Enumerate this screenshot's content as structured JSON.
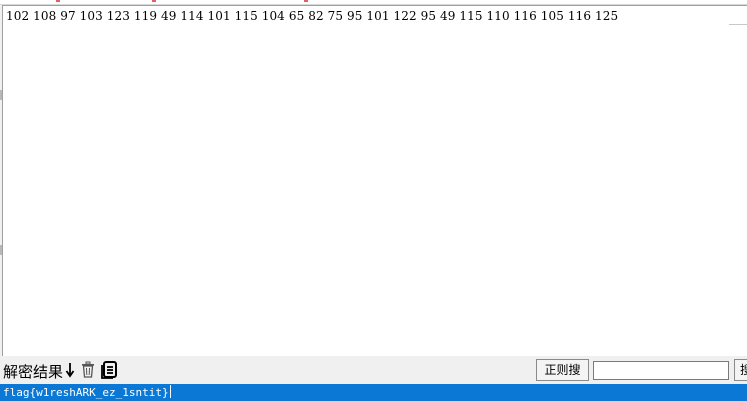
{
  "editor": {
    "content": "102 108 97 103 123 119 49 114 101 115 104 65 82 75 95 101 122 95 49 115 110 116 105 116 125"
  },
  "toolbar": {
    "decrypt_result_label": "解密结果",
    "icons": [
      "arrow-down-icon",
      "trash-icon",
      "document-icon"
    ],
    "regex_search_label": "正则搜",
    "search_value": "",
    "search_button_label": "搜"
  },
  "result": {
    "text": "flag{w1reshARK_ez_1sntit}"
  },
  "colors": {
    "result_bar": "#0a78d4",
    "panel": "#f0f0f0"
  }
}
